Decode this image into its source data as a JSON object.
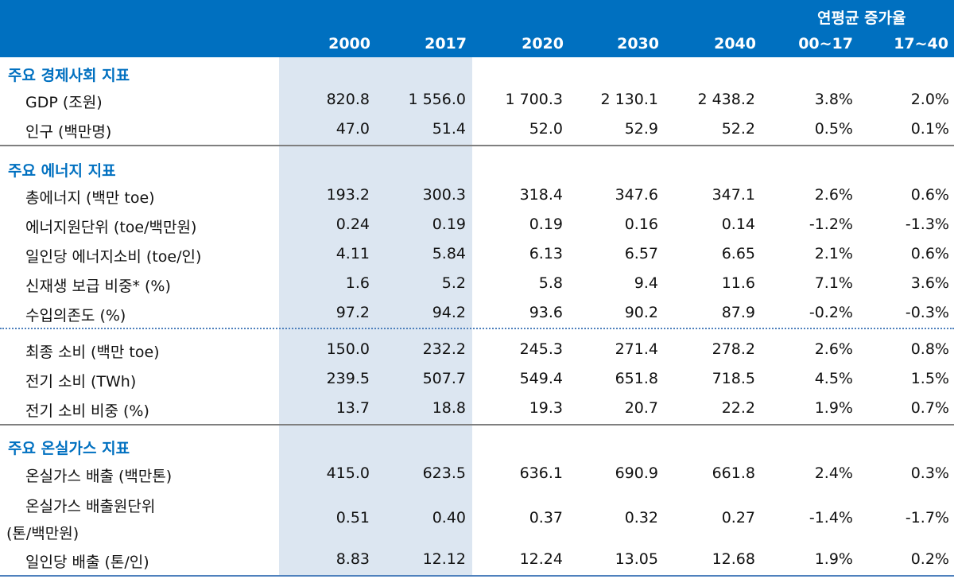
{
  "header": {
    "cagr_label": "연평균 증가율",
    "columns": [
      "2000",
      "2017",
      "2020",
      "2030",
      "2040",
      "00~17",
      "17~40"
    ]
  },
  "sections": [
    {
      "title": "주요 경제사회 지표",
      "rows": [
        {
          "label": "GDP (조원)",
          "values": [
            "820.8",
            "1 556.0",
            "1 700.3",
            "2 130.1",
            "2 438.2",
            "3.8%",
            "2.0%"
          ]
        },
        {
          "label": "인구 (백만명)",
          "values": [
            "47.0",
            "51.4",
            "52.0",
            "52.9",
            "52.2",
            "0.5%",
            "0.1%"
          ]
        }
      ]
    },
    {
      "title": "주요 에너지 지표",
      "rows": [
        {
          "label": "총에너지 (백만 toe)",
          "values": [
            "193.2",
            "300.3",
            "318.4",
            "347.6",
            "347.1",
            "2.6%",
            "0.6%"
          ]
        },
        {
          "label": "에너지원단위 (toe/백만원)",
          "values": [
            "0.24",
            "0.19",
            "0.19",
            "0.16",
            "0.14",
            "-1.2%",
            "-1.3%"
          ]
        },
        {
          "label": "일인당 에너지소비 (toe/인)",
          "values": [
            "4.11",
            "5.84",
            "6.13",
            "6.57",
            "6.65",
            "2.1%",
            "0.6%"
          ]
        },
        {
          "label": "신재생 보급 비중* (%)",
          "values": [
            "1.6",
            "5.2",
            "5.8",
            "9.4",
            "11.6",
            "7.1%",
            "3.6%"
          ]
        },
        {
          "label": "수입의존도 (%)",
          "values": [
            "97.2",
            "94.2",
            "93.6",
            "90.2",
            "87.9",
            "-0.2%",
            "-0.3%"
          ]
        },
        {
          "label": "최종 소비 (백만 toe)",
          "values": [
            "150.0",
            "232.2",
            "245.3",
            "271.4",
            "278.2",
            "2.6%",
            "0.8%"
          ]
        },
        {
          "label": "전기 소비 (TWh)",
          "values": [
            "239.5",
            "507.7",
            "549.4",
            "651.8",
            "718.5",
            "4.5%",
            "1.5%"
          ]
        },
        {
          "label": "전기 소비 비중 (%)",
          "values": [
            "13.7",
            "18.8",
            "19.3",
            "20.7",
            "22.2",
            "1.9%",
            "0.7%"
          ]
        }
      ]
    },
    {
      "title": "주요 온실가스 지표",
      "rows": [
        {
          "label": "온실가스 배출 (백만톤)",
          "values": [
            "415.0",
            "623.5",
            "636.1",
            "690.9",
            "661.8",
            "2.4%",
            "0.3%"
          ]
        },
        {
          "label_line1": "온실가스 배출원단위",
          "label_line2": "(톤/백만원)",
          "values": [
            "0.51",
            "0.40",
            "0.37",
            "0.32",
            "0.27",
            "-1.4%",
            "-1.7%"
          ]
        },
        {
          "label": "일인당 배출 (톤/인)",
          "values": [
            "8.83",
            "12.12",
            "12.24",
            "13.05",
            "12.68",
            "1.9%",
            "0.2%"
          ]
        }
      ]
    }
  ]
}
